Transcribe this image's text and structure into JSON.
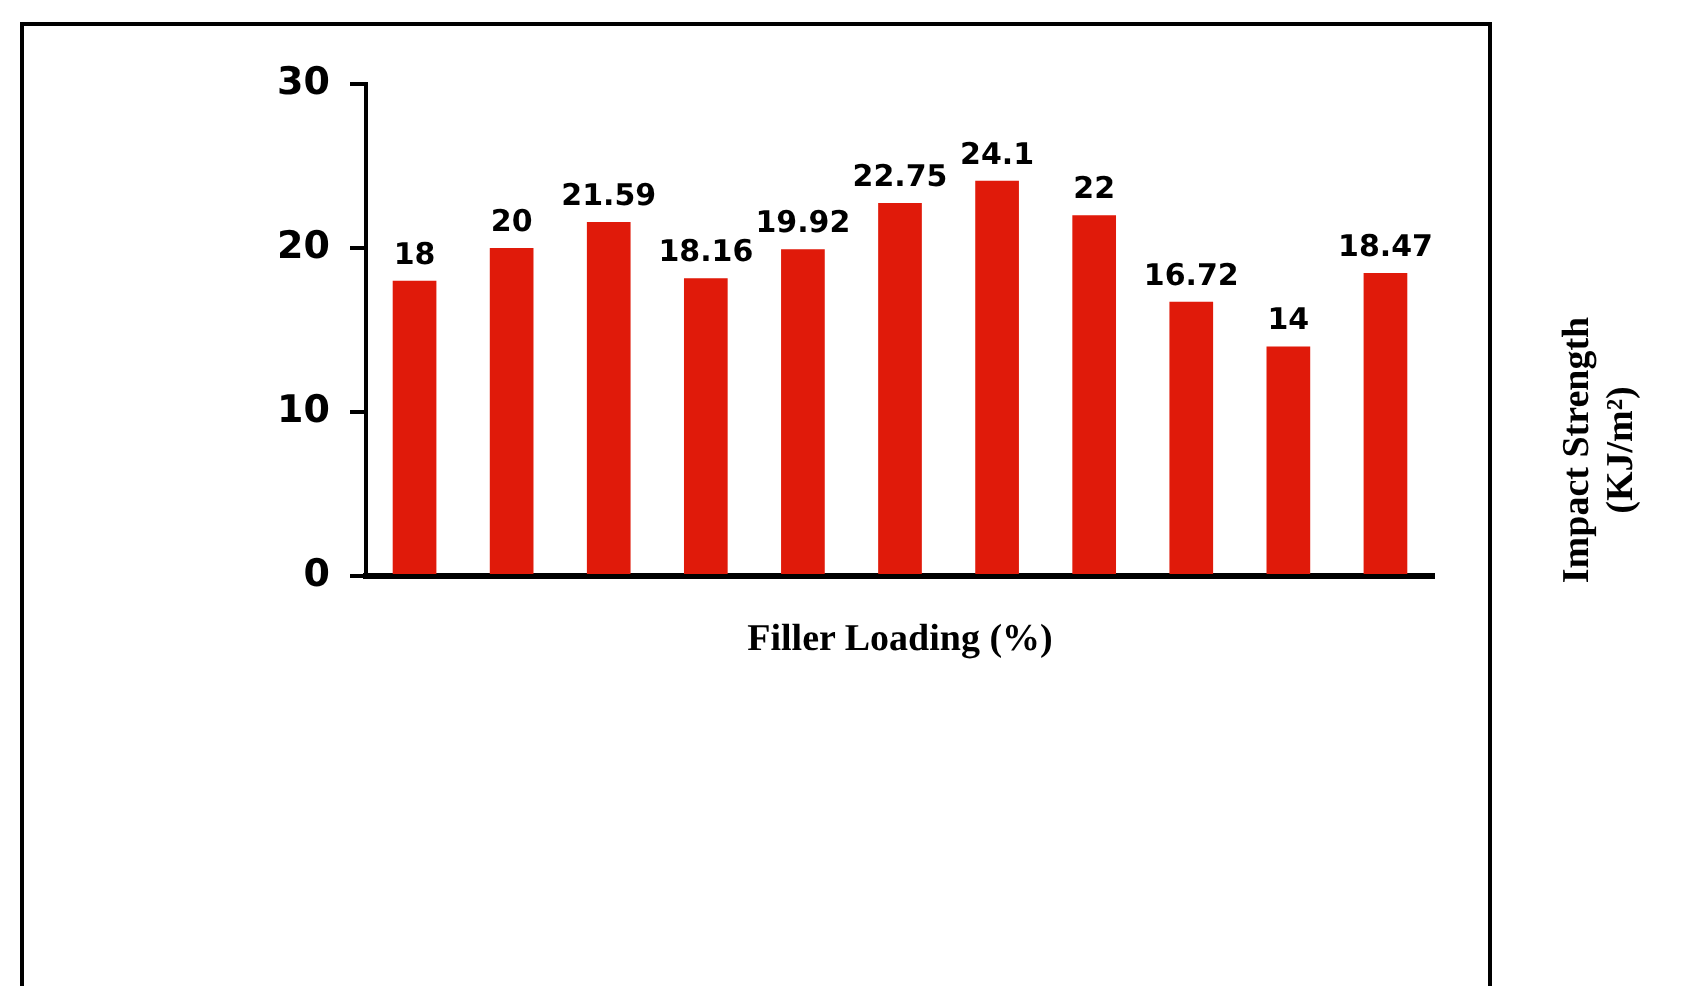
{
  "chart_data": {
    "type": "bar",
    "xlabel": "Filler Loading (%)",
    "ylabel": "Impact Strength\n(KJ/m²)",
    "categories": [
      null,
      null,
      null,
      null,
      null,
      null,
      null,
      null,
      null,
      null,
      null
    ],
    "values": [
      18,
      20,
      21.59,
      18.16,
      19.92,
      22.75,
      24.1,
      22,
      16.72,
      14,
      18.47
    ],
    "color": "#e01a0a",
    "ylim": [
      0,
      30
    ],
    "yticks": [
      0,
      10,
      20,
      30
    ],
    "grid": false,
    "legend": false,
    "data_labels": true
  }
}
